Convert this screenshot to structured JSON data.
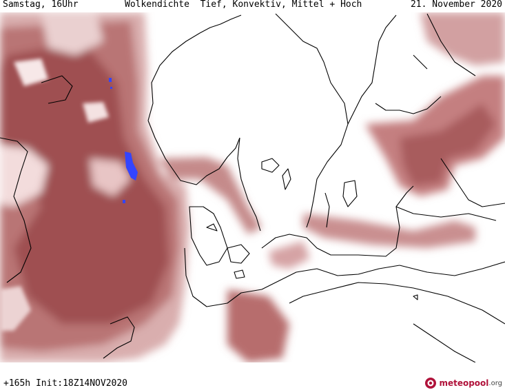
{
  "header": {
    "valid_time": "Samstag, 16Uhr",
    "title": "Wolkendichte  Tief, Konvektiv, Mittel + Hoch",
    "date": "21. November 2020"
  },
  "footer": {
    "run_info": "+165h Init:18Z14NOV2020",
    "brand_name": "meteopool",
    "brand_suffix": ".org"
  },
  "map": {
    "region": "North Sea and Baltic Sea",
    "layer": "cloud density",
    "colors": {
      "cloud_light": "#d7a9a9",
      "cloud_mid": "#b86f6f",
      "cloud_dark": "#9b4a4c",
      "precip_marker": "#3344ff",
      "coastline": "#000000"
    },
    "icons": [
      "precip-marker-icon",
      "meteopool-logo-icon"
    ]
  }
}
